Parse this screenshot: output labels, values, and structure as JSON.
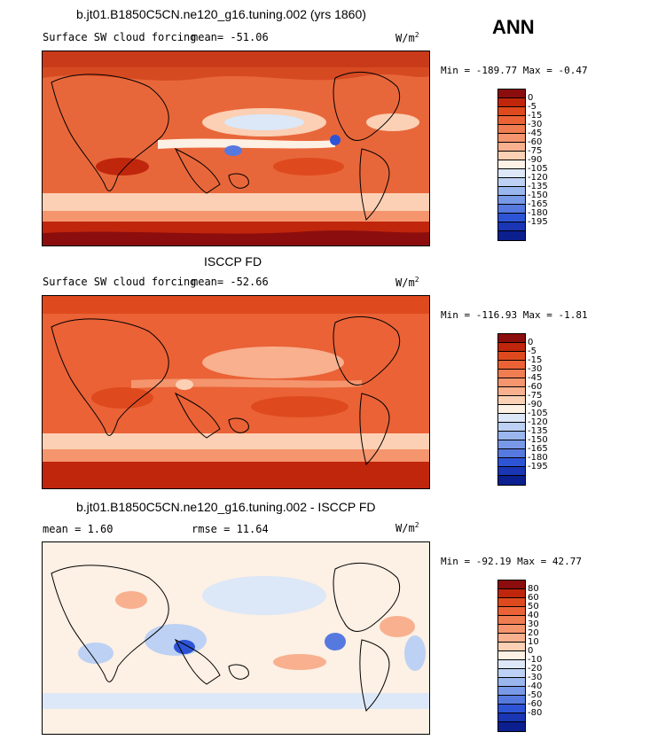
{
  "header": {
    "title": "b.jt01.B1850C5CN.ne120_g16.tuning.002 (yrs 1860)",
    "season": "ANN"
  },
  "panels": [
    {
      "id": "model",
      "title": "",
      "subtitle": "Surface SW cloud forcing",
      "stat1": "mean=  -51.06",
      "stat2": "",
      "units": "W/m",
      "units_exp": "2",
      "minmax": "Min = -189.77 Max =  -0.47",
      "colorbar": {
        "labels": [
          "0",
          "-5",
          "-15",
          "-30",
          "-45",
          "-60",
          "-75",
          "-90",
          "-105",
          "-120",
          "-135",
          "-150",
          "-165",
          "-180",
          "-195"
        ],
        "colors": [
          "#8c0d0d",
          "#c0260c",
          "#de4a1e",
          "#ea6236",
          "#f07c52",
          "#f4956e",
          "#f8b08f",
          "#fbd0b4",
          "#fdf0e4",
          "#dce7f7",
          "#bcd1f3",
          "#9ab6ee",
          "#7899e8",
          "#5679e0",
          "#2e54d6",
          "#1a36b4",
          "#0b1f8f"
        ]
      }
    },
    {
      "id": "obs",
      "title": "ISCCP FD",
      "subtitle": "Surface SW cloud forcing",
      "stat1": "mean=  -52.66",
      "stat2": "",
      "units": "W/m",
      "units_exp": "2",
      "minmax": "Min = -116.93 Max =  -1.81",
      "colorbar": {
        "labels": [
          "0",
          "-5",
          "-15",
          "-30",
          "-45",
          "-60",
          "-75",
          "-90",
          "-105",
          "-120",
          "-135",
          "-150",
          "-165",
          "-180",
          "-195"
        ],
        "colors": [
          "#8c0d0d",
          "#c0260c",
          "#de4a1e",
          "#ea6236",
          "#f07c52",
          "#f4956e",
          "#f8b08f",
          "#fbd0b4",
          "#fdf0e4",
          "#dce7f7",
          "#bcd1f3",
          "#9ab6ee",
          "#7899e8",
          "#5679e0",
          "#2e54d6",
          "#1a36b4",
          "#0b1f8f"
        ]
      }
    },
    {
      "id": "diff",
      "title": "b.jt01.B1850C5CN.ne120_g16.tuning.002 - ISCCP FD",
      "subtitle": "",
      "stat1": "mean =    1.60",
      "stat2": "rmse =   11.64",
      "units": "W/m",
      "units_exp": "2",
      "minmax": "Min = -92.19 Max =  42.77",
      "colorbar": {
        "labels": [
          "80",
          "60",
          "50",
          "40",
          "30",
          "20",
          "10",
          "0",
          "-10",
          "-20",
          "-30",
          "-40",
          "-50",
          "-60",
          "-80"
        ],
        "colors": [
          "#8c0d0d",
          "#c0260c",
          "#de4a1e",
          "#ea6236",
          "#f07c52",
          "#f4956e",
          "#f8b08f",
          "#fbd0b4",
          "#fdf0e4",
          "#dce7f7",
          "#bcd1f3",
          "#9ab6ee",
          "#7899e8",
          "#5679e0",
          "#2e54d6",
          "#1a36b4",
          "#0b1f8f"
        ]
      }
    }
  ],
  "chart_data": [
    {
      "type": "heatmap",
      "title": "b.jt01.B1850C5CN.ne120_g16.tuning.002 (yrs 1860)",
      "subtitle": "Surface SW cloud forcing",
      "units": "W/m^2",
      "mean": -51.06,
      "min": -189.77,
      "max": -0.47,
      "contour_levels": [
        0,
        -5,
        -15,
        -30,
        -45,
        -60,
        -75,
        -90,
        -105,
        -120,
        -135,
        -150,
        -165,
        -180,
        -195
      ]
    },
    {
      "type": "heatmap",
      "title": "ISCCP FD",
      "subtitle": "Surface SW cloud forcing",
      "units": "W/m^2",
      "mean": -52.66,
      "min": -116.93,
      "max": -1.81,
      "contour_levels": [
        0,
        -5,
        -15,
        -30,
        -45,
        -60,
        -75,
        -90,
        -105,
        -120,
        -135,
        -150,
        -165,
        -180,
        -195
      ]
    },
    {
      "type": "heatmap",
      "title": "b.jt01.B1850C5CN.ne120_g16.tuning.002 - ISCCP FD",
      "units": "W/m^2",
      "mean": 1.6,
      "rmse": 11.64,
      "min": -92.19,
      "max": 42.77,
      "contour_levels": [
        80,
        60,
        50,
        40,
        30,
        20,
        10,
        0,
        -10,
        -20,
        -30,
        -40,
        -50,
        -60,
        -80
      ]
    }
  ]
}
